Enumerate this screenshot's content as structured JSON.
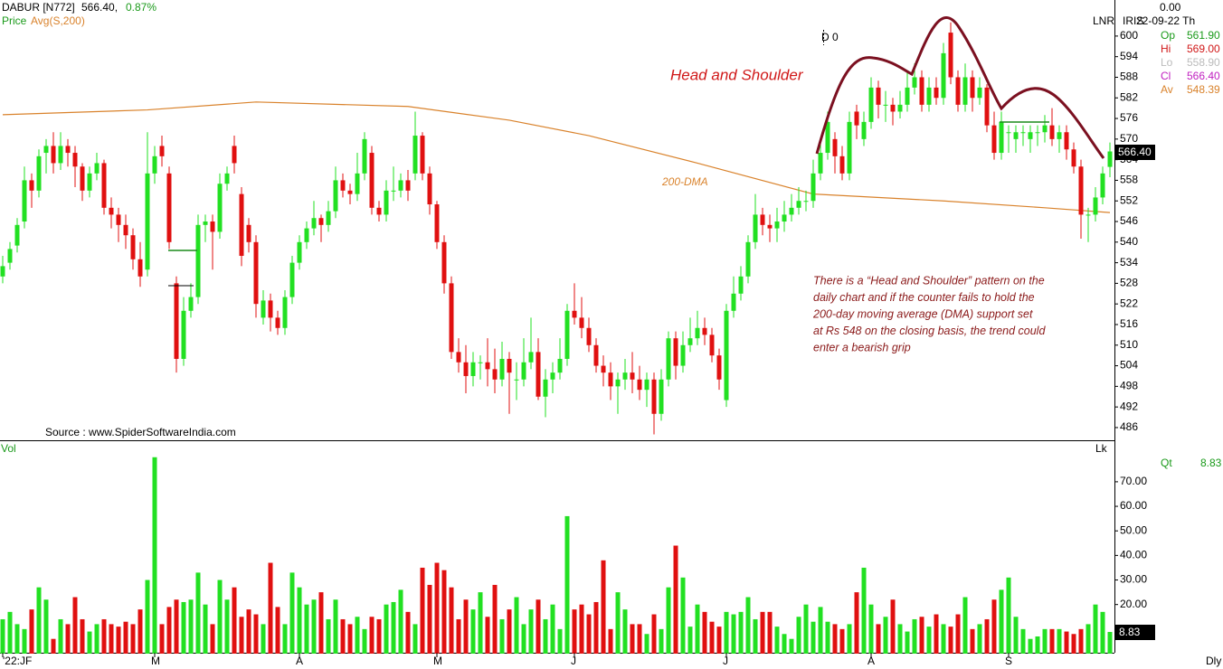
{
  "chart_data": {
    "type": "candlestick",
    "symbol": "DABUR [N772]",
    "last": "566.40,",
    "change": "0.87%",
    "legend_price": "Price",
    "legend_avg": "Avg(S,200)",
    "source": "Source : www.SpiderSoftwareIndia.com",
    "marker": "D 0",
    "axis_label": "LNR",
    "indicator": "IRIS",
    "info": {
      "top": "0.00",
      "date": "22-09-22 Th",
      "rows": [
        [
          "Op",
          "561.90"
        ],
        [
          "Hi",
          "569.00"
        ],
        [
          "Lo",
          "558.90"
        ],
        [
          "Cl",
          "566.40"
        ],
        [
          "Av",
          "548.39"
        ]
      ]
    },
    "pattern_title": "Head and Shoulder",
    "note": [
      "There is a “Head and Shoulder” pattern on the",
      "daily chart and if the counter fails to hold the",
      "200-day moving average (DMA) support set",
      "at Rs 548 on the closing basis, the trend could",
      "enter a bearish grip"
    ],
    "price_tag": "566.40",
    "ylim": [
      482.3,
      610.5
    ],
    "yticks": [
      486,
      492,
      498,
      504,
      510,
      516,
      522,
      528,
      534,
      540,
      546,
      552,
      558,
      564,
      570,
      576,
      582,
      588,
      594,
      600
    ],
    "candles": [
      [
        530,
        536,
        528,
        533
      ],
      [
        534,
        540,
        532,
        538
      ],
      [
        539,
        547,
        537,
        545
      ],
      [
        546,
        562,
        544,
        558
      ],
      [
        558,
        560,
        550,
        555
      ],
      [
        555,
        567,
        553,
        565
      ],
      [
        566,
        570,
        560,
        568
      ],
      [
        568,
        572,
        560,
        563
      ],
      [
        563,
        572,
        561,
        568
      ],
      [
        568,
        570,
        562,
        566
      ],
      [
        566,
        568,
        556,
        562
      ],
      [
        562,
        563,
        552,
        555
      ],
      [
        555,
        562,
        553,
        560
      ],
      [
        560,
        566,
        558,
        563
      ],
      [
        563,
        564,
        548,
        550
      ],
      [
        550,
        553,
        544,
        548
      ],
      [
        548,
        550,
        540,
        545
      ],
      [
        545,
        548,
        538,
        542
      ],
      [
        542,
        544,
        532,
        535
      ],
      [
        535,
        540,
        527,
        530
      ],
      [
        532,
        572,
        530,
        560
      ],
      [
        560,
        568,
        557,
        565
      ],
      [
        568,
        571,
        562,
        565
      ],
      [
        560,
        562,
        538,
        540
      ],
      [
        528,
        530,
        502,
        506
      ],
      [
        506,
        524,
        504,
        520
      ],
      [
        520,
        528,
        518,
        524
      ],
      [
        524,
        548,
        522,
        545
      ],
      [
        545,
        548,
        540,
        546
      ],
      [
        546,
        548,
        532,
        543
      ],
      [
        543,
        560,
        541,
        557
      ],
      [
        557,
        562,
        555,
        560
      ],
      [
        568,
        571,
        560,
        563
      ],
      [
        554,
        556,
        533,
        536
      ],
      [
        545,
        547,
        537,
        540
      ],
      [
        540,
        542,
        518,
        522
      ],
      [
        518,
        526,
        516,
        523
      ],
      [
        523,
        525,
        514,
        518
      ],
      [
        518,
        520,
        513,
        515
      ],
      [
        515,
        526,
        513,
        524
      ],
      [
        524,
        536,
        522,
        534
      ],
      [
        534,
        542,
        532,
        540
      ],
      [
        540,
        546,
        538,
        544
      ],
      [
        544,
        552,
        542,
        547
      ],
      [
        547,
        548,
        540,
        545
      ],
      [
        545,
        552,
        543,
        549
      ],
      [
        549,
        562,
        547,
        558
      ],
      [
        558,
        560,
        553,
        555
      ],
      [
        555,
        557,
        551,
        554
      ],
      [
        554,
        566,
        552,
        560
      ],
      [
        560,
        572,
        558,
        570
      ],
      [
        566,
        568,
        548,
        550
      ],
      [
        550,
        552,
        546,
        548
      ],
      [
        548,
        558,
        546,
        555
      ],
      [
        555,
        562,
        552,
        555
      ],
      [
        555,
        560,
        553,
        558
      ],
      [
        558,
        561,
        552,
        555
      ],
      [
        560,
        578,
        558,
        571
      ],
      [
        571,
        572,
        558,
        560
      ],
      [
        560,
        562,
        548,
        551
      ],
      [
        551,
        552,
        538,
        540
      ],
      [
        540,
        542,
        525,
        528
      ],
      [
        528,
        530,
        506,
        508
      ],
      [
        508,
        512,
        502,
        505
      ],
      [
        505,
        510,
        496,
        501
      ],
      [
        501,
        508,
        498,
        505
      ],
      [
        505,
        507,
        500,
        505
      ],
      [
        505,
        512,
        498,
        503
      ],
      [
        503,
        509,
        496,
        500
      ],
      [
        500,
        511,
        498,
        506
      ],
      [
        506,
        508,
        490,
        502
      ],
      [
        500,
        505,
        494,
        500
      ],
      [
        500,
        512,
        498,
        505
      ],
      [
        505,
        518,
        503,
        508
      ],
      [
        508,
        512,
        494,
        495
      ],
      [
        495,
        503,
        489,
        500
      ],
      [
        500,
        505,
        496,
        502
      ],
      [
        502,
        512,
        500,
        506
      ],
      [
        506,
        522,
        504,
        520
      ],
      [
        520,
        528,
        516,
        518
      ],
      [
        518,
        524,
        512,
        515
      ],
      [
        515,
        518,
        508,
        510
      ],
      [
        510,
        512,
        502,
        504
      ],
      [
        504,
        507,
        498,
        502
      ],
      [
        502,
        505,
        494,
        498
      ],
      [
        498,
        502,
        490,
        500
      ],
      [
        500,
        506,
        497,
        502
      ],
      [
        502,
        508,
        496,
        500
      ],
      [
        500,
        504,
        494,
        497
      ],
      [
        497,
        502,
        492,
        500
      ],
      [
        500,
        502,
        484,
        490
      ],
      [
        490,
        503,
        488,
        500
      ],
      [
        500,
        514,
        498,
        512
      ],
      [
        512,
        514,
        500,
        504
      ],
      [
        504,
        514,
        502,
        510
      ],
      [
        510,
        518,
        508,
        512
      ],
      [
        512,
        520,
        510,
        515
      ],
      [
        515,
        518,
        510,
        513
      ],
      [
        513,
        515,
        505,
        507
      ],
      [
        507,
        509,
        497,
        500
      ],
      [
        494,
        522,
        492,
        520
      ],
      [
        520,
        530,
        518,
        525
      ],
      [
        525,
        533,
        523,
        530
      ],
      [
        530,
        542,
        528,
        540
      ],
      [
        540,
        554,
        538,
        548
      ],
      [
        548,
        550,
        542,
        545
      ],
      [
        545,
        548,
        540,
        544
      ],
      [
        544,
        550,
        540,
        546
      ],
      [
        546,
        552,
        543,
        548
      ],
      [
        548,
        554,
        546,
        550
      ],
      [
        550,
        556,
        548,
        552
      ],
      [
        552,
        555,
        549,
        552
      ],
      [
        552,
        564,
        550,
        560
      ],
      [
        560,
        570,
        558,
        566
      ],
      [
        566,
        578,
        564,
        575
      ],
      [
        570,
        572,
        560,
        565
      ],
      [
        565,
        568,
        558,
        560
      ],
      [
        560,
        578,
        558,
        575
      ],
      [
        578,
        580,
        570,
        574
      ],
      [
        570,
        578,
        568,
        575
      ],
      [
        575,
        588,
        573,
        585
      ],
      [
        585,
        587,
        576,
        580
      ],
      [
        580,
        584,
        575,
        580
      ],
      [
        580,
        582,
        574,
        578
      ],
      [
        578,
        584,
        576,
        580
      ],
      [
        580,
        590,
        578,
        585
      ],
      [
        585,
        592,
        583,
        588
      ],
      [
        588,
        590,
        578,
        580
      ],
      [
        580,
        588,
        578,
        585
      ],
      [
        585,
        588,
        580,
        582
      ],
      [
        582,
        598,
        580,
        595
      ],
      [
        601,
        604,
        586,
        588
      ],
      [
        588,
        590,
        578,
        580
      ],
      [
        580,
        592,
        578,
        588
      ],
      [
        588,
        590,
        578,
        582
      ],
      [
        582,
        588,
        580,
        585
      ],
      [
        585,
        586,
        572,
        574
      ],
      [
        574,
        578,
        564,
        566
      ],
      [
        566,
        578,
        564,
        575
      ],
      [
        572,
        574,
        566,
        572
      ],
      [
        570,
        574,
        566,
        572
      ],
      [
        572,
        574,
        568,
        572
      ],
      [
        570,
        574,
        566,
        572
      ],
      [
        572,
        574,
        568,
        572
      ],
      [
        572,
        577,
        569,
        574
      ],
      [
        574,
        579,
        568,
        570
      ],
      [
        570,
        574,
        566,
        572
      ],
      [
        572,
        574,
        564,
        567
      ],
      [
        567,
        569,
        560,
        562
      ],
      [
        562,
        564,
        541,
        548
      ],
      [
        548,
        550,
        540,
        548
      ],
      [
        548,
        556,
        546,
        553
      ],
      [
        553,
        562,
        551,
        560
      ],
      [
        561.9,
        569,
        558.9,
        566.4
      ]
    ],
    "up_color": "#22e022",
    "down_color": "#e01010",
    "ma": {
      "name": "200-DMA",
      "color": "#d9822b",
      "x": [
        0,
        20,
        35,
        56,
        70,
        81,
        96,
        112,
        130,
        144,
        153
      ],
      "values": [
        577.1,
        578.5,
        580.8,
        579.5,
        575.5,
        571,
        563,
        554,
        552,
        550,
        548.6
      ]
    },
    "x_ticks": [
      {
        "value": 0,
        "label": "'22:JF"
      },
      {
        "value": 21,
        "label": "M"
      },
      {
        "value": 41,
        "label": "A"
      },
      {
        "value": 60,
        "label": "M"
      },
      {
        "value": 79,
        "label": "J"
      },
      {
        "value": 100,
        "label": "J"
      },
      {
        "value": 120,
        "label": "A"
      },
      {
        "value": 139,
        "label": "S"
      }
    ],
    "period": "Dly",
    "volume_panel": {
      "title": "Vol",
      "corner": "Lk",
      "qt_label": "Qt",
      "qt_value": "8.83",
      "tag": "8.83",
      "ylim": [
        0,
        85.8
      ],
      "yticks": [
        {
          "value": 20,
          "label": "20.00"
        },
        {
          "value": 30,
          "label": "30.00"
        },
        {
          "value": 40,
          "label": "40.00"
        },
        {
          "value": 50,
          "label": "50.00"
        },
        {
          "value": 60,
          "label": "60.00"
        },
        {
          "value": 70,
          "label": "70.00"
        }
      ],
      "values": [
        14,
        17,
        12,
        10,
        18,
        27,
        22,
        6,
        14,
        12,
        23,
        14,
        9,
        12,
        14,
        12,
        11,
        13,
        12,
        18,
        30,
        80,
        12,
        19,
        22,
        21,
        22,
        33,
        20,
        12,
        30,
        22,
        27,
        15,
        18,
        16,
        12,
        37,
        19,
        12,
        33,
        27,
        20,
        22,
        25,
        14,
        22,
        14,
        12,
        15,
        10,
        15,
        14,
        20,
        21,
        26,
        17,
        12,
        35,
        28,
        37,
        34,
        27,
        14,
        22,
        18,
        25,
        15,
        28,
        14,
        18,
        23,
        12,
        18,
        22,
        14,
        20,
        10,
        56,
        18,
        20,
        16,
        21,
        38,
        10,
        25,
        18,
        12,
        12,
        8,
        16,
        10,
        27,
        44,
        31,
        11,
        20,
        17,
        13,
        11,
        17,
        16,
        17,
        23,
        14,
        17,
        17,
        11,
        8,
        6,
        15,
        20,
        13,
        19,
        13,
        12,
        10,
        12,
        25,
        35,
        20,
        12,
        15,
        22,
        12,
        9,
        14,
        15,
        11,
        16,
        12,
        11,
        16,
        23,
        10,
        12,
        14,
        22,
        26,
        31,
        15,
        10,
        6,
        7,
        10,
        10,
        10,
        9,
        8,
        10,
        12,
        20,
        17,
        8.83
      ]
    }
  }
}
